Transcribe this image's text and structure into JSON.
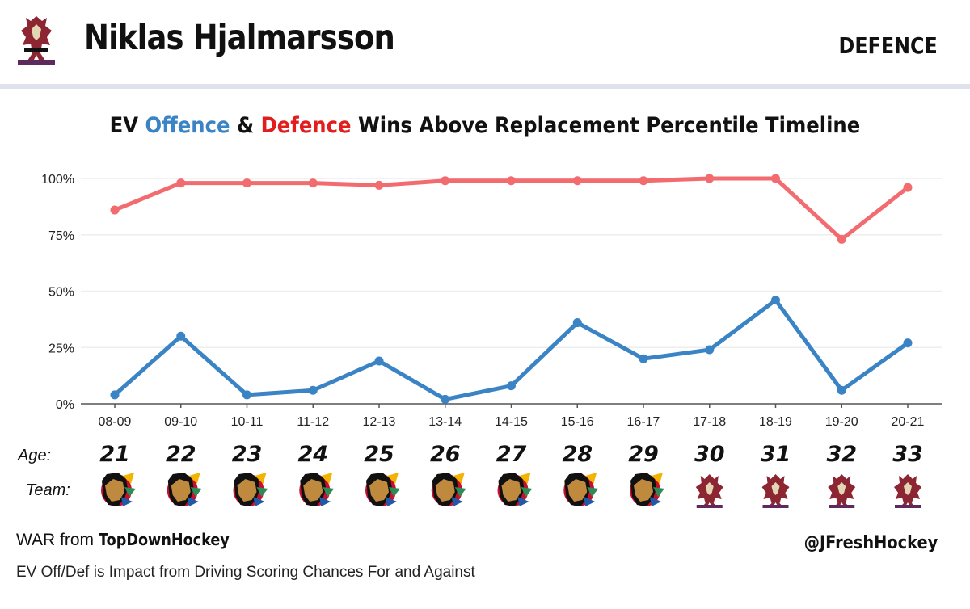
{
  "header": {
    "player_name": "Niklas Hjalmarsson",
    "position": "DEFENCE",
    "logo_icon": "coyotes-logo-icon"
  },
  "title": {
    "prefix": "EV ",
    "offence": "Offence",
    "amp": " & ",
    "defence": "Defence",
    "suffix": " Wins Above Replacement Percentile Timeline"
  },
  "labels": {
    "age": "Age:",
    "team": "Team:"
  },
  "footer": {
    "war_prefix": "WAR from ",
    "war_source": "TopDownHockey",
    "note": "EV Off/Def is Impact from Driving Scoring Chances For and Against",
    "handle": "@JFreshHockey"
  },
  "colors": {
    "offence": "#3a83c4",
    "defence": "#f26b6f",
    "title_defence": "#e11d1d",
    "grid": "#eeeeee",
    "blackhawks_red": "#c8102e",
    "coyotes_red": "#8c2633",
    "coyotes_sand": "#e2d6b5"
  },
  "chart_data": {
    "type": "line",
    "categories": [
      "08-09",
      "09-10",
      "10-11",
      "11-12",
      "12-13",
      "13-14",
      "14-15",
      "15-16",
      "16-17",
      "17-18",
      "18-19",
      "19-20",
      "20-21"
    ],
    "y_tick_labels": [
      "0%",
      "25%",
      "50%",
      "75%",
      "100%"
    ],
    "ylim": [
      0,
      100
    ],
    "grid": true,
    "series": [
      {
        "key": "defence",
        "values": [
          86,
          98,
          98,
          98,
          97,
          99,
          99,
          99,
          99,
          100,
          100,
          73,
          96
        ]
      },
      {
        "key": "offence",
        "values": [
          4,
          30,
          4,
          6,
          19,
          2,
          8,
          36,
          20,
          24,
          46,
          6,
          27
        ]
      }
    ],
    "ages": [
      "21",
      "22",
      "23",
      "24",
      "25",
      "26",
      "27",
      "28",
      "29",
      "30",
      "31",
      "32",
      "33"
    ],
    "teams": [
      "blackhawks-logo-icon",
      "blackhawks-logo-icon",
      "blackhawks-logo-icon",
      "blackhawks-logo-icon",
      "blackhawks-logo-icon",
      "blackhawks-logo-icon",
      "blackhawks-logo-icon",
      "blackhawks-logo-icon",
      "blackhawks-logo-icon",
      "coyotes-logo-icon",
      "coyotes-logo-icon",
      "coyotes-logo-icon",
      "coyotes-logo-icon"
    ]
  }
}
